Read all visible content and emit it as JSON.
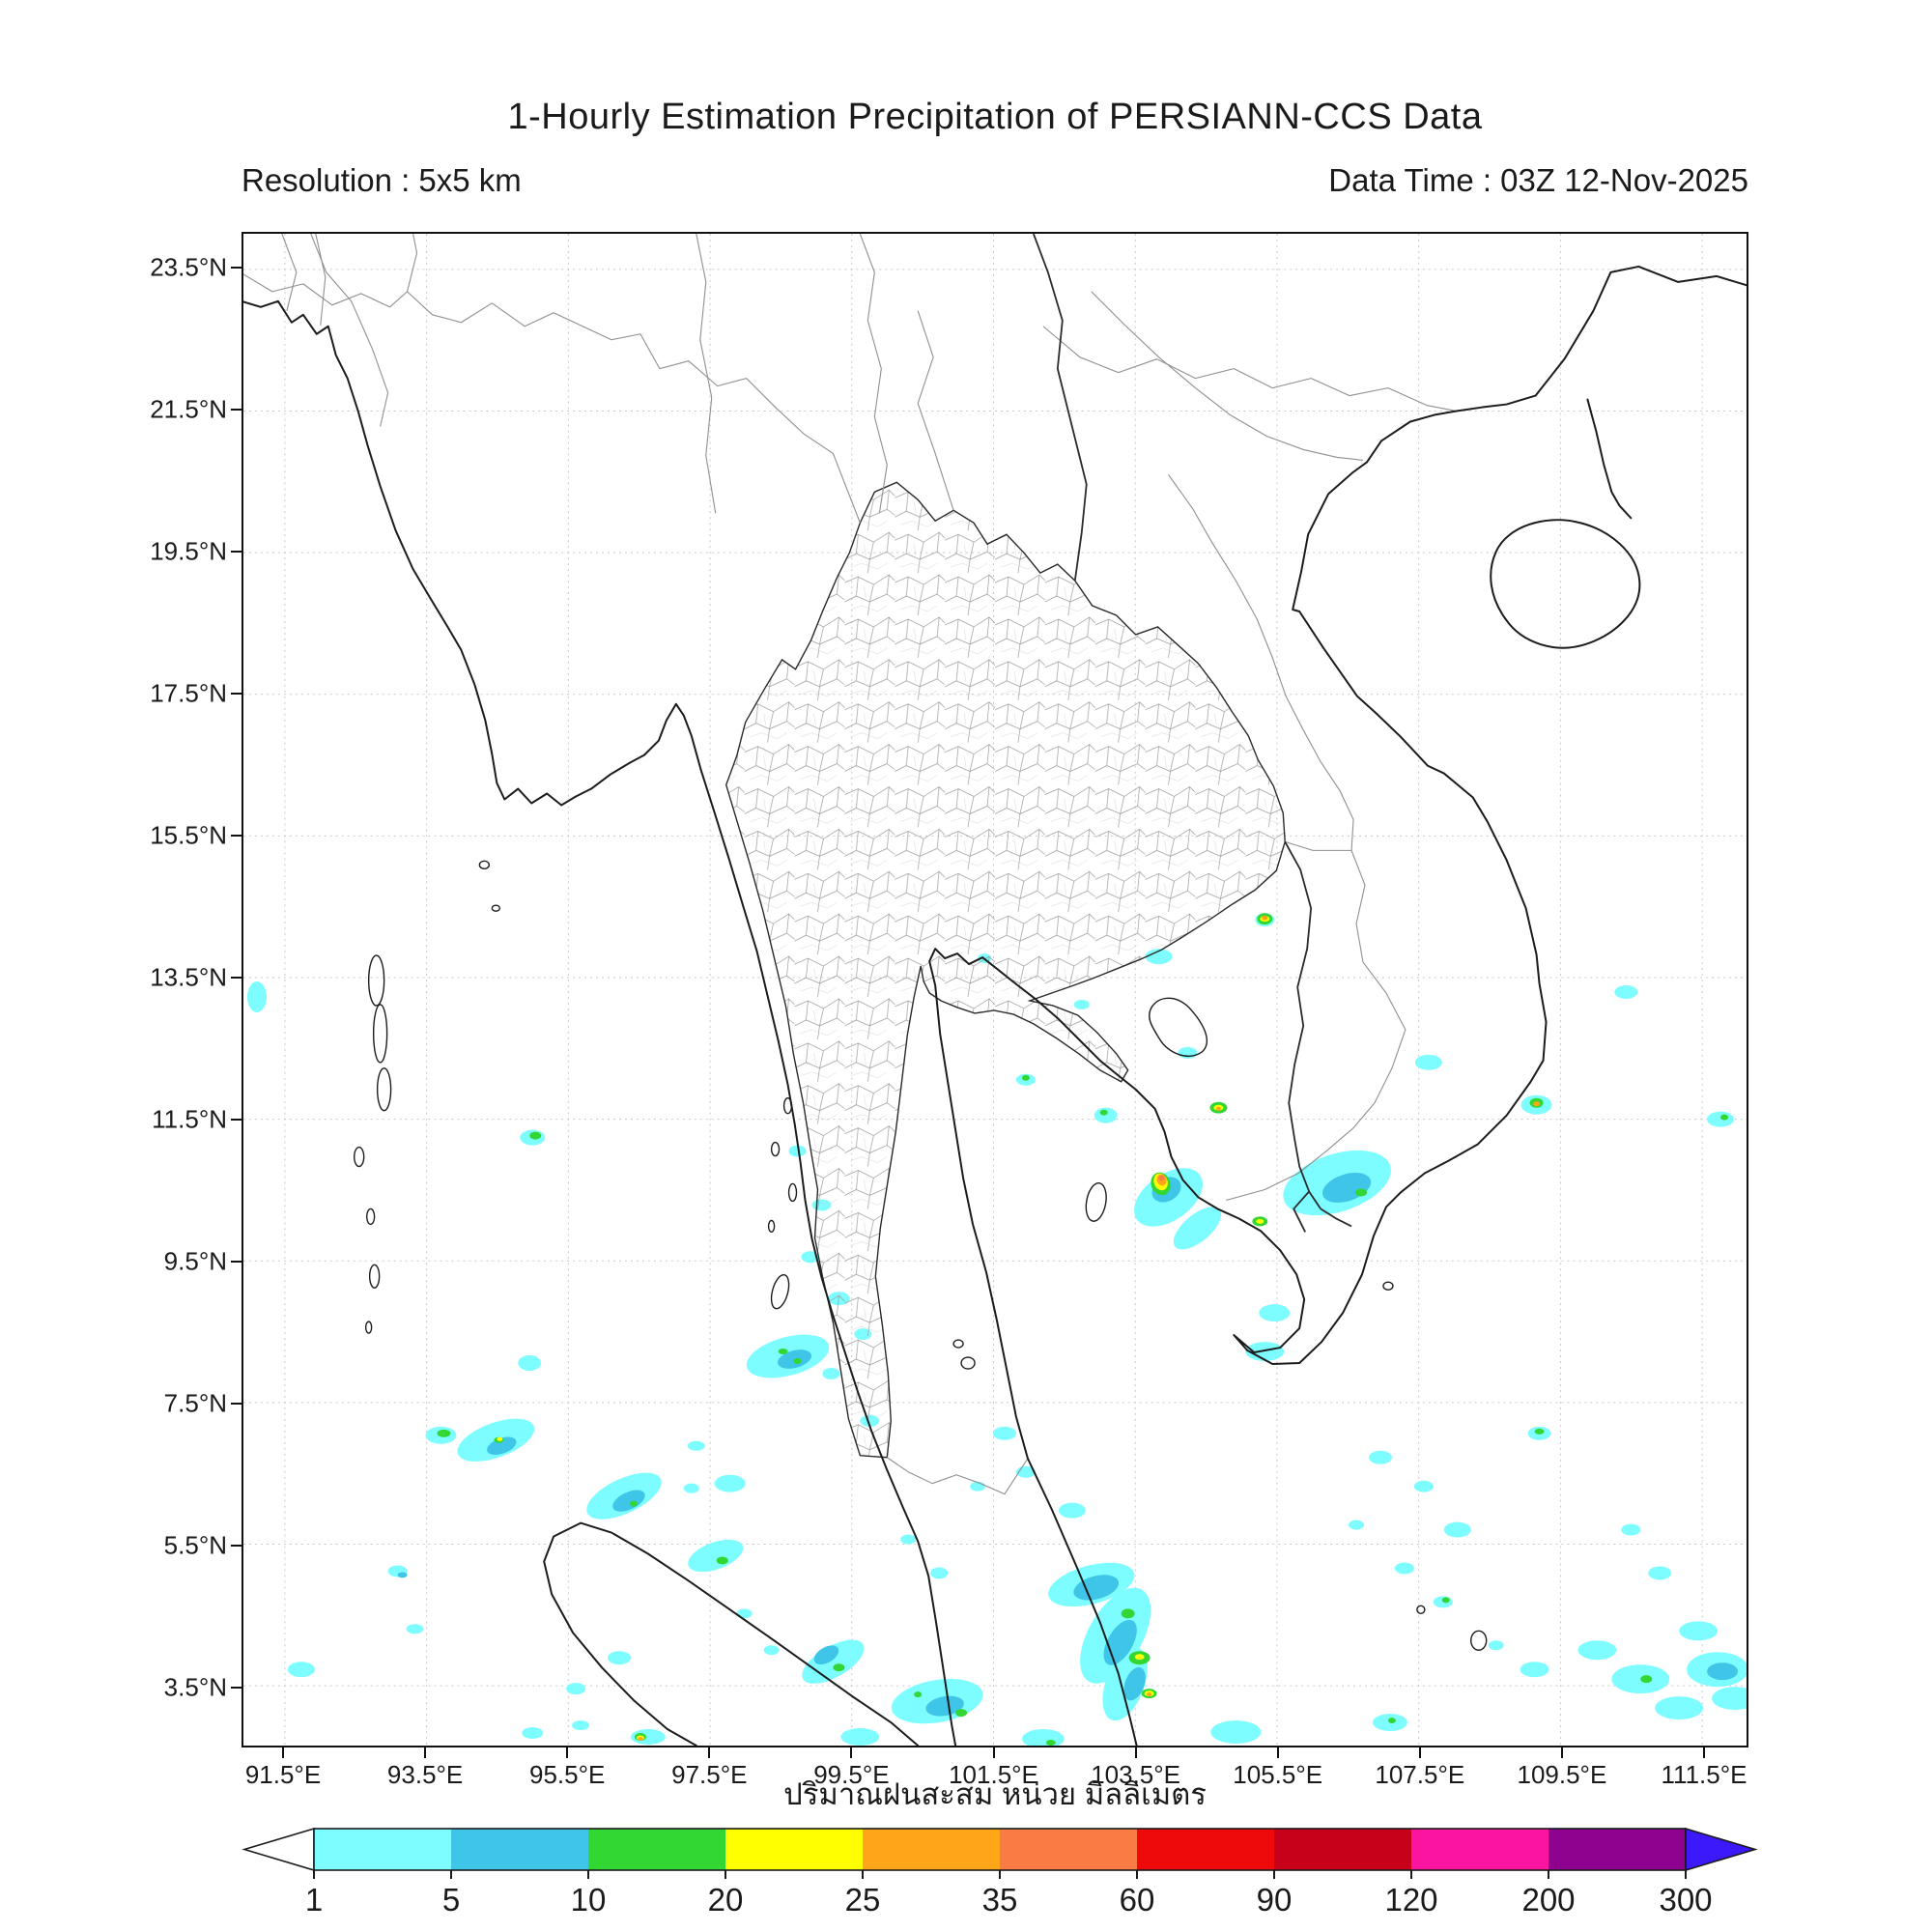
{
  "header": {
    "title": "1-Hourly Estimation Precipitation of PERSIANN-CCS Data",
    "resolution_label": "Resolution : 5x5 km",
    "data_time_label": "Data Time : 03Z 12-Nov-2025"
  },
  "map": {
    "x_tick_labels": [
      "91.5°E",
      "93.5°E",
      "95.5°E",
      "97.5°E",
      "99.5°E",
      "101.5°E",
      "103.5°E",
      "105.5°E",
      "107.5°E",
      "109.5°E",
      "111.5°E"
    ],
    "y_tick_labels": [
      "23.5°N",
      "21.5°N",
      "19.5°N",
      "17.5°N",
      "15.5°N",
      "13.5°N",
      "11.5°N",
      "9.5°N",
      "7.5°N",
      "5.5°N",
      "3.5°N"
    ],
    "region": "Thailand and Indochina / Southeast Asia"
  },
  "caption_thai": "ปริมาณฝนสะสม หน่วย มิลลิเมตร",
  "colorbar": {
    "tick_labels": [
      "1",
      "5",
      "10",
      "20",
      "25",
      "35",
      "60",
      "90",
      "120",
      "200",
      "300"
    ],
    "unit": "mm",
    "underflow_color": "#ffffff",
    "overflow_color": "#3c19fa",
    "segments": [
      {
        "range": "1-5",
        "color": "#7dfdff"
      },
      {
        "range": "5-10",
        "color": "#3fc5e8"
      },
      {
        "range": "10-20",
        "color": "#33d733"
      },
      {
        "range": "20-25",
        "color": "#ffff00"
      },
      {
        "range": "25-35",
        "color": "#ffa518"
      },
      {
        "range": "35-60",
        "color": "#f87c44"
      },
      {
        "range": "60-90",
        "color": "#ee0a0a"
      },
      {
        "range": "90-120",
        "color": "#c70119"
      },
      {
        "range": "120-200",
        "color": "#fb14a0"
      },
      {
        "range": "200-300",
        "color": "#8f028f"
      }
    ]
  },
  "chart_data": {
    "type": "heatmap",
    "title": "1-Hourly Estimation Precipitation of PERSIANN-CCS Data",
    "xlabel_ticks": [
      91.5,
      93.5,
      95.5,
      97.5,
      99.5,
      101.5,
      103.5,
      105.5,
      107.5,
      109.5,
      111.5
    ],
    "ylabel_ticks": [
      23.5,
      21.5,
      19.5,
      17.5,
      15.5,
      13.5,
      11.5,
      9.5,
      7.5,
      5.5,
      3.5
    ],
    "lon_range": [
      90.9,
      112.1
    ],
    "lat_range": [
      2.7,
      24.0
    ],
    "scale_breaks_mm": [
      1,
      5,
      10,
      20,
      25,
      35,
      60,
      90,
      120,
      200,
      300
    ],
    "legend_position": "bottom",
    "grid": true
  }
}
